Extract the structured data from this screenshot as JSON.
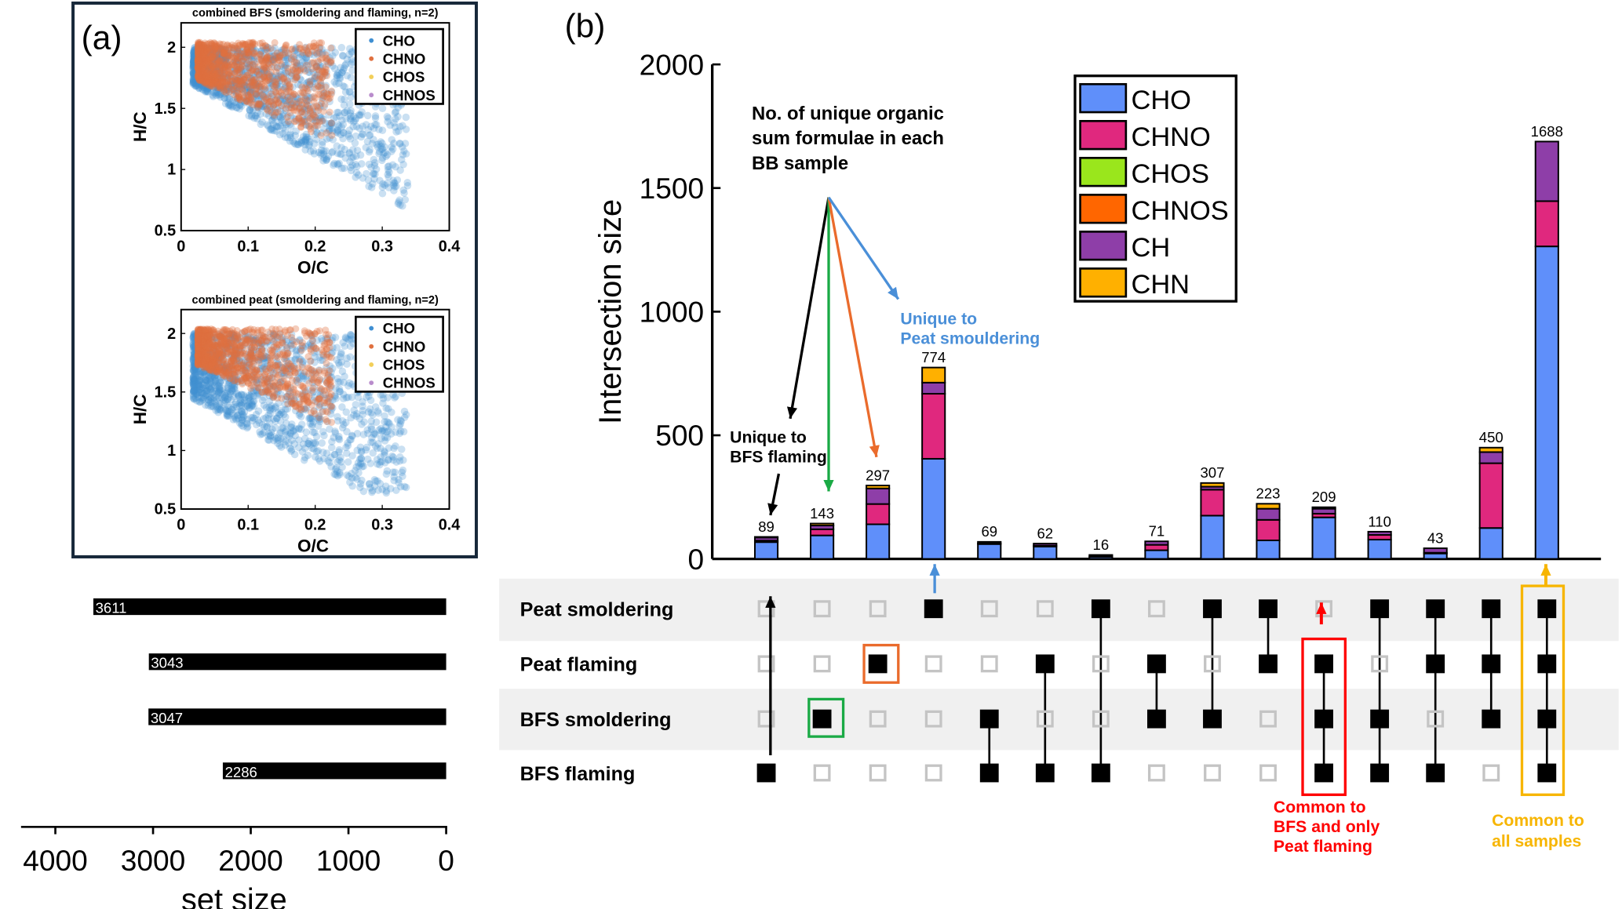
{
  "panel_a": {
    "label": "(a)",
    "plots": [
      {
        "title": "combined BFS (smoldering and flaming, n=2)",
        "xlabel": "O/C",
        "ylabel": "H/C",
        "xticks": [
          "0",
          "0.1",
          "0.2",
          "0.3",
          "0.4"
        ],
        "yticks": [
          "0.5",
          "1",
          "1.5",
          "2"
        ],
        "legend": [
          "CHO",
          "CHNO",
          "CHOS",
          "CHNOS"
        ]
      },
      {
        "title": "combined peat (smoldering and flaming, n=2)",
        "xlabel": "O/C",
        "ylabel": "H/C",
        "xticks": [
          "0",
          "0.1",
          "0.2",
          "0.3",
          "0.4"
        ],
        "yticks": [
          "0.5",
          "1",
          "1.5",
          "2"
        ],
        "legend": [
          "CHO",
          "CHNO",
          "CHOS",
          "CHNOS"
        ]
      }
    ],
    "legend_colors": [
      "#3f8fd2",
      "#e0703f",
      "#f2cf5a",
      "#b98ccc"
    ]
  },
  "chart_data": {
    "type": "bar",
    "stacked": true,
    "panel_label": "(b)",
    "ylabel": "Intersection size",
    "ylim": [
      0,
      2000
    ],
    "yticks": [
      "0",
      "500",
      "1000",
      "1500",
      "2000"
    ],
    "legend_position": "top-center",
    "totals": [
      89,
      143,
      297,
      774,
      69,
      62,
      16,
      71,
      307,
      223,
      209,
      110,
      43,
      450,
      1688
    ],
    "series": [
      {
        "name": "CHO",
        "color": "#5f8ffa",
        "values": [
          68,
          95,
          140,
          405,
          60,
          50,
          8,
          35,
          175,
          75,
          168,
          78,
          22,
          125,
          1264
        ]
      },
      {
        "name": "CHNO",
        "color": "#e0287e",
        "values": [
          6,
          25,
          82,
          263,
          3,
          4,
          2,
          22,
          105,
          83,
          15,
          19,
          3,
          262,
          183
        ]
      },
      {
        "name": "CHOS",
        "color": "#9ae61c",
        "values": [
          0,
          0,
          0,
          0,
          0,
          0,
          0,
          0,
          0,
          0,
          0,
          0,
          0,
          0,
          0
        ]
      },
      {
        "name": "CHNOS",
        "color": "#ff6600",
        "values": [
          0,
          0,
          0,
          0,
          0,
          0,
          0,
          0,
          0,
          0,
          0,
          0,
          0,
          0,
          0
        ]
      },
      {
        "name": "CH",
        "color": "#8e3ea8",
        "values": [
          12,
          15,
          63,
          45,
          6,
          8,
          6,
          14,
          12,
          45,
          20,
          13,
          18,
          45,
          241
        ]
      },
      {
        "name": "CHN",
        "color": "#ffb000",
        "values": [
          3,
          8,
          12,
          61,
          0,
          0,
          0,
          0,
          15,
          20,
          6,
          0,
          0,
          18,
          0
        ]
      }
    ],
    "sets": [
      "Peat smoldering",
      "Peat flaming",
      "BFS smoldering",
      "BFS flaming"
    ],
    "membership": [
      [
        0,
        0,
        0,
        1
      ],
      [
        0,
        0,
        1,
        0
      ],
      [
        0,
        1,
        0,
        0
      ],
      [
        1,
        0,
        0,
        0
      ],
      [
        0,
        0,
        1,
        1
      ],
      [
        0,
        1,
        0,
        1
      ],
      [
        1,
        0,
        0,
        1
      ],
      [
        0,
        1,
        1,
        0
      ],
      [
        1,
        0,
        1,
        0
      ],
      [
        1,
        1,
        0,
        0
      ],
      [
        0,
        1,
        1,
        1
      ],
      [
        1,
        0,
        1,
        1
      ],
      [
        1,
        1,
        0,
        1
      ],
      [
        1,
        1,
        1,
        0
      ],
      [
        1,
        1,
        1,
        1
      ]
    ],
    "set_sizes": [
      3611,
      3043,
      3047,
      2286
    ],
    "set_size_xlabel": "set size",
    "set_size_ticks": [
      "4000",
      "3000",
      "2000",
      "1000",
      "0"
    ],
    "set_size_xlim": [
      4000,
      0
    ],
    "annotations": {
      "header": [
        "No. of unique organic",
        "sum formulae in each",
        "BB sample"
      ],
      "peat_smouldering": [
        "Unique to",
        "Peat smouldering"
      ],
      "bfs_flaming": [
        "Unique to",
        "BFS flaming"
      ],
      "common_bfs_peat_flaming": [
        "Common to",
        "BFS and only",
        "Peat flaming"
      ],
      "common_all": [
        "Common to",
        "all samples"
      ]
    },
    "annotation_colors": {
      "blue": "#4a8fd8",
      "green": "#1aaa45",
      "orange": "#ea6b2c",
      "red": "#ff0000",
      "yellow": "#f7b500"
    }
  }
}
